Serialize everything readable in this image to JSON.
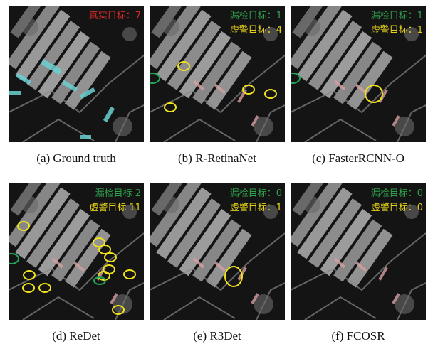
{
  "panels": [
    {
      "caption": "(a) Ground truth",
      "labels": [
        "真实目标：7"
      ]
    },
    {
      "caption": "(b) R-RetinaNet",
      "labels": [
        "漏检目标：1",
        "虚警目标：4"
      ]
    },
    {
      "caption": "(c) FasterRCNN-O",
      "labels": [
        "漏检目标：1",
        "虚警目标：1"
      ]
    },
    {
      "caption": "(d) ReDet",
      "labels": [
        "漏检目标 2",
        "虚警目标 11"
      ]
    },
    {
      "caption": "(e) R3Det",
      "labels": [
        "漏检目标：0",
        "虚警目标：1"
      ]
    },
    {
      "caption": "(f) FCOSR",
      "labels": [
        "漏检目标：0",
        "虚警目标：0"
      ]
    }
  ]
}
